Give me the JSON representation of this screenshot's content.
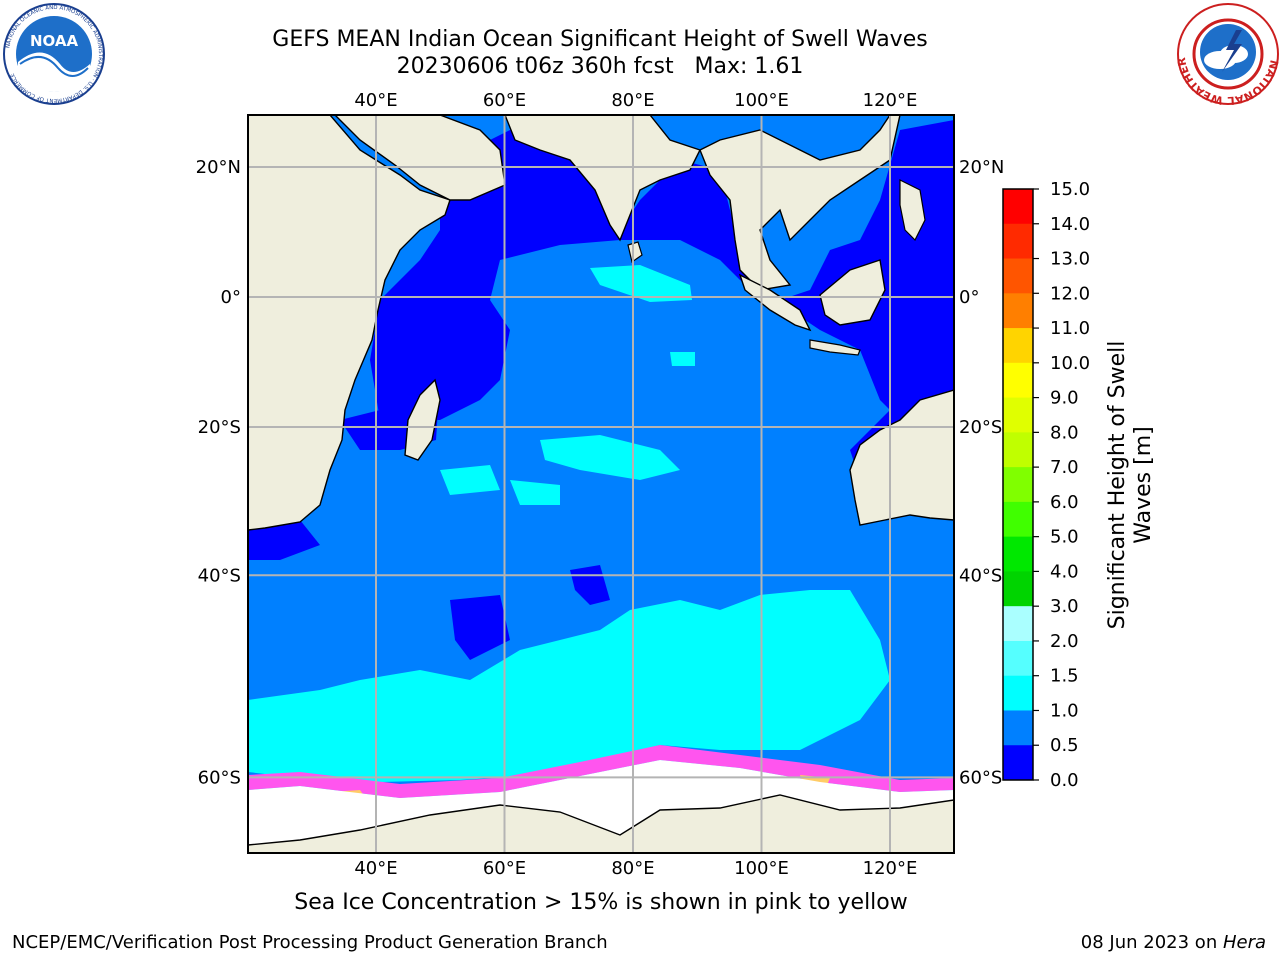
{
  "header": {
    "title_line1": "GEFS MEAN Indian Ocean Significant Height of Swell Waves",
    "title_line2": "20230606 t06z 360h fcst   Max: 1.61"
  },
  "logos": {
    "left": {
      "icon": "noaa-logo-icon",
      "text": "NOAA",
      "ring_text": "NATIONAL OCEANIC AND ATMOSPHERIC ADMINISTRATION · U.S. DEPARTMENT OF COMMERCE"
    },
    "right": {
      "icon": "nws-logo-icon",
      "ring_text": "NATIONAL WEATHER SERVICE"
    }
  },
  "map": {
    "lon_ticks": [
      "40°E",
      "60°E",
      "80°E",
      "100°E",
      "120°E"
    ],
    "lat_ticks": [
      "20°N",
      "0°",
      "20°S",
      "40°S",
      "60°S"
    ],
    "lon_values": [
      40,
      60,
      80,
      100,
      120
    ],
    "lat_values": [
      20,
      0,
      -20,
      -40,
      -60
    ],
    "colors": {
      "land": "#efeedd",
      "deep_blue": "#0000ff",
      "mid_blue": "#0080ff",
      "cyan": "#00ffff",
      "ice_white": "#ffffff",
      "ice_pink": "#ff55ee",
      "ice_yellow": "#ffcc66",
      "grid": "#b4b4b4"
    }
  },
  "colorbar": {
    "label": "Significant Height of Swell Waves [m]",
    "label_line1": "Significant Height of Swell",
    "label_line2": "Waves [m]",
    "ticks": [
      "15.0",
      "14.0",
      "13.0",
      "12.0",
      "11.0",
      "10.0",
      "9.0",
      "8.0",
      "7.0",
      "6.0",
      "5.0",
      "4.0",
      "3.0",
      "2.0",
      "1.5",
      "1.0",
      "0.5",
      "0.0"
    ],
    "colors_top_to_bottom": [
      "#ff0000",
      "#ff2a00",
      "#ff5500",
      "#ff7f00",
      "#ffaa00",
      "#ffd400",
      "#ffff00",
      "#e0ff00",
      "#c0ff00",
      "#80ff00",
      "#40ff00",
      "#00e800",
      "#00d400",
      "#55ff80",
      "#aaffff",
      "#55ffff",
      "#00ffff",
      "#0080ff",
      "#0000ff"
    ]
  },
  "footer": {
    "note": "Sea Ice Concentration > 15% is shown in pink to yellow",
    "credit": "NCEP/EMC/Verification Post Processing Product Generation Branch",
    "date_prefix": "08 Jun 2023 on ",
    "date_host": "Hera"
  }
}
